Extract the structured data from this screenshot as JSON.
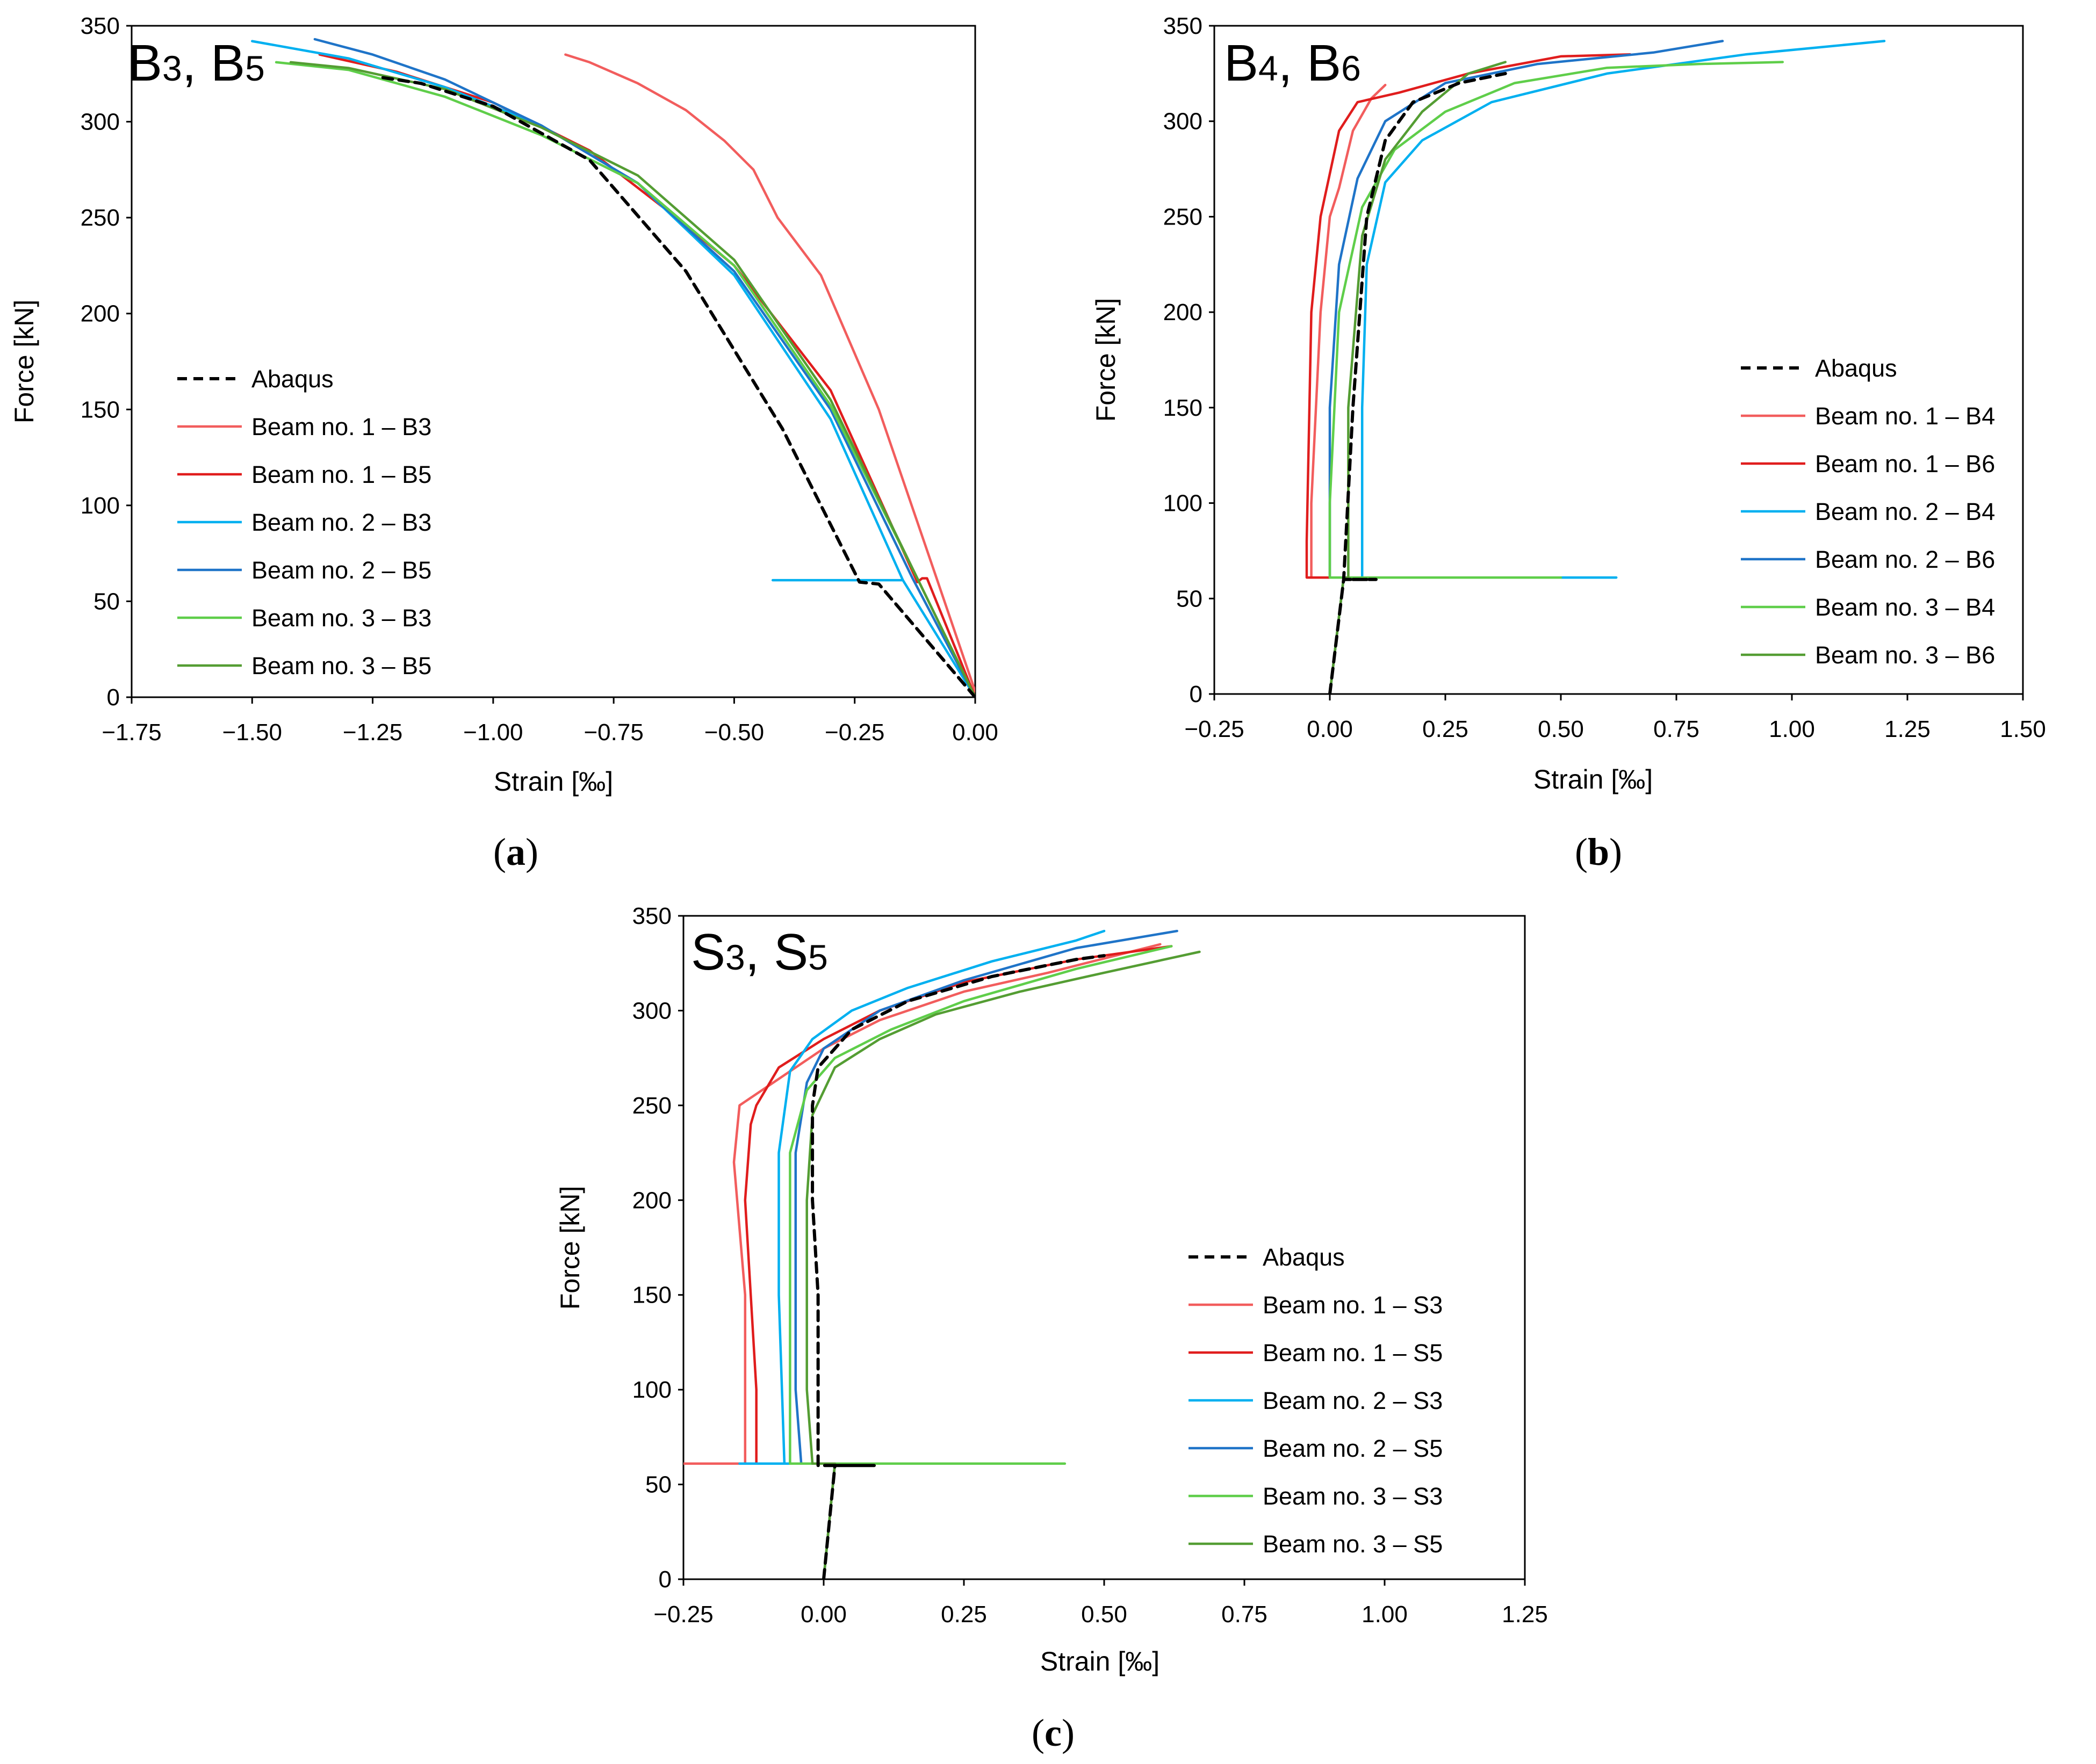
{
  "colors": {
    "Abaqus": "#000000",
    "Beam no. 1 (light)": "#f25d5d",
    "Beam no. 1 (dark)": "#e01d1d",
    "Beam no. 2 (light)": "#00b0f0",
    "Beam no. 2 (dark)": "#1f74c8",
    "Beam no. 3 (light)": "#5fce4a",
    "Beam no. 3 (dark)": "#549d33"
  },
  "chart_data": [
    {
      "id": "a",
      "type": "line",
      "caption_letter": "a",
      "title_main1": "B",
      "title_sub1": "3",
      "title_sep": ", ",
      "title_main2": "B",
      "title_sub2": "5",
      "xlabel": "Strain [‰]",
      "ylabel": "Force [kN]",
      "xlim": [
        -1.75,
        0.0
      ],
      "ylim": [
        0,
        350
      ],
      "xticks": [
        -1.75,
        -1.5,
        -1.25,
        -1.0,
        -0.75,
        -0.5,
        -0.25,
        0.0
      ],
      "xtick_labels": [
        "−1.75",
        "−1.50",
        "−1.25",
        "−1.00",
        "−0.75",
        "−0.50",
        "−0.25",
        "0.00"
      ],
      "yticks": [
        0,
        50,
        100,
        150,
        200,
        250,
        300,
        350
      ],
      "ytick_labels": [
        "0",
        "50",
        "100",
        "150",
        "200",
        "250",
        "300",
        "350"
      ],
      "legend_position": "center-left",
      "series": [
        {
          "name": "Abaqus",
          "dash": true,
          "x": [
            0.0,
            -0.2,
            -0.24,
            -0.4,
            -0.6,
            -0.8,
            -1.0,
            -1.15,
            -1.23
          ],
          "y": [
            0,
            59,
            60,
            140,
            222,
            280,
            308,
            320,
            323
          ]
        },
        {
          "name": "Beam no. 1 – B3",
          "dash": false,
          "x": [
            0.0,
            -0.08,
            -0.2,
            -0.32,
            -0.41,
            -0.46,
            -0.52,
            -0.6,
            -0.7,
            -0.8,
            -0.85
          ],
          "y": [
            3,
            62,
            150,
            220,
            250,
            275,
            290,
            306,
            320,
            331,
            335
          ]
        },
        {
          "name": "Beam no. 1 – B5",
          "dash": false,
          "x": [
            0.0,
            -0.1,
            -0.11,
            -0.12,
            -0.3,
            -0.5,
            -0.62,
            -0.8,
            -1.0,
            -1.2,
            -1.36
          ],
          "y": [
            0,
            62,
            62,
            60,
            160,
            225,
            250,
            285,
            310,
            326,
            335
          ]
        },
        {
          "name": "Beam no. 2 – B3",
          "dash": false,
          "x": [
            0.0,
            -0.15,
            -0.42,
            -0.15,
            -0.3,
            -0.5,
            -0.7,
            -0.9,
            -1.1,
            -1.3,
            -1.5
          ],
          "y": [
            0,
            61,
            61,
            61,
            145,
            220,
            268,
            298,
            318,
            333,
            342
          ]
        },
        {
          "name": "Beam no. 2 – B5",
          "dash": false,
          "x": [
            0.0,
            -0.13,
            -0.3,
            -0.5,
            -0.7,
            -0.9,
            -1.1,
            -1.25,
            -1.37
          ],
          "y": [
            0,
            62,
            150,
            222,
            268,
            298,
            322,
            335,
            343
          ]
        },
        {
          "name": "Beam no. 3 – B3",
          "dash": false,
          "x": [
            0.0,
            -0.12,
            -0.3,
            -0.5,
            -0.7,
            -0.9,
            -1.1,
            -1.3,
            -1.45
          ],
          "y": [
            0,
            62,
            152,
            225,
            268,
            293,
            313,
            327,
            331
          ]
        },
        {
          "name": "Beam no. 3 – B5",
          "dash": false,
          "x": [
            0.0,
            -0.12,
            -0.3,
            -0.5,
            -0.7,
            -0.9,
            -1.1,
            -1.3,
            -1.42
          ],
          "y": [
            0,
            62,
            155,
            228,
            272,
            297,
            317,
            328,
            331
          ]
        }
      ]
    },
    {
      "id": "b",
      "type": "line",
      "caption_letter": "b",
      "title_main1": "B",
      "title_sub1": "4",
      "title_sep": ", ",
      "title_main2": "B",
      "title_sub2": "6",
      "xlabel": "Strain [‰]",
      "ylabel": "Force [kN]",
      "xlim": [
        -0.25,
        1.5
      ],
      "ylim": [
        0,
        350
      ],
      "xticks": [
        -0.25,
        0.0,
        0.25,
        0.5,
        0.75,
        1.0,
        1.25,
        1.5
      ],
      "xtick_labels": [
        "−0.25",
        "0.00",
        "0.25",
        "0.50",
        "0.75",
        "1.00",
        "1.25",
        "1.50"
      ],
      "yticks": [
        0,
        50,
        100,
        150,
        200,
        250,
        300,
        350
      ],
      "ytick_labels": [
        "0",
        "50",
        "100",
        "150",
        "200",
        "250",
        "300",
        "350"
      ],
      "legend_position": "center-right",
      "series": [
        {
          "name": "Abaqus",
          "dash": true,
          "x": [
            0.0,
            0.03,
            0.1,
            0.03,
            0.05,
            0.08,
            0.12,
            0.18,
            0.28,
            0.38
          ],
          "y": [
            0,
            60,
            60,
            60,
            150,
            250,
            290,
            310,
            320,
            325
          ]
        },
        {
          "name": "Beam no. 1 – B4",
          "dash": false,
          "x": [
            0.0,
            0.03,
            -0.04,
            -0.04,
            -0.02,
            0.0,
            0.02,
            0.05,
            0.09,
            0.12
          ],
          "y": [
            0,
            61,
            61,
            100,
            200,
            250,
            265,
            295,
            312,
            319
          ]
        },
        {
          "name": "Beam no. 1 – B6",
          "dash": false,
          "x": [
            0.0,
            0.03,
            -0.05,
            -0.05,
            -0.04,
            -0.02,
            0.02,
            0.06,
            0.15,
            0.3,
            0.5,
            0.65
          ],
          "y": [
            0,
            61,
            61,
            80,
            200,
            250,
            295,
            310,
            315,
            325,
            334,
            335
          ]
        },
        {
          "name": "Beam no. 2 – B4",
          "dash": false,
          "x": [
            0.0,
            0.03,
            0.62,
            0.07,
            0.07,
            0.08,
            0.12,
            0.2,
            0.35,
            0.6,
            0.9,
            1.2
          ],
          "y": [
            0,
            61,
            61,
            61,
            150,
            225,
            268,
            290,
            310,
            325,
            335,
            342
          ]
        },
        {
          "name": "Beam no. 2 – B6",
          "dash": false,
          "x": [
            0.0,
            0.03,
            0.0,
            0.0,
            0.02,
            0.06,
            0.12,
            0.25,
            0.45,
            0.7,
            0.85
          ],
          "y": [
            0,
            61,
            61,
            150,
            225,
            270,
            300,
            320,
            330,
            336,
            342
          ]
        },
        {
          "name": "Beam no. 3 – B4",
          "dash": false,
          "x": [
            0.0,
            0.03,
            0.5,
            0.0,
            0.0,
            0.02,
            0.07,
            0.14,
            0.25,
            0.4,
            0.6,
            0.8,
            0.98
          ],
          "y": [
            0,
            61,
            61,
            61,
            100,
            200,
            255,
            285,
            305,
            320,
            328,
            330,
            331
          ]
        },
        {
          "name": "Beam no. 3 – B6",
          "dash": false,
          "x": [
            0.0,
            0.03,
            0.04,
            0.04,
            0.07,
            0.12,
            0.2,
            0.3,
            0.38
          ],
          "y": [
            0,
            61,
            61,
            150,
            240,
            280,
            305,
            325,
            331
          ]
        }
      ]
    },
    {
      "id": "c",
      "type": "line",
      "caption_letter": "c",
      "title_main1": "S",
      "title_sub1": "3",
      "title_sep": ", ",
      "title_main2": "S",
      "title_sub2": "5",
      "xlabel": "Strain [‰]",
      "ylabel": "Force [kN]",
      "xlim": [
        -0.25,
        1.25
      ],
      "ylim": [
        0,
        350
      ],
      "xticks": [
        -0.25,
        0.0,
        0.25,
        0.5,
        0.75,
        1.0,
        1.25
      ],
      "xtick_labels": [
        "−0.25",
        "0.00",
        "0.25",
        "0.50",
        "0.75",
        "1.00",
        "1.25"
      ],
      "yticks": [
        0,
        50,
        100,
        150,
        200,
        250,
        300,
        350
      ],
      "ytick_labels": [
        "0",
        "50",
        "100",
        "150",
        "200",
        "250",
        "300",
        "350"
      ],
      "legend_position": "center-right",
      "series": [
        {
          "name": "Abaqus",
          "dash": true,
          "x": [
            0.0,
            0.02,
            0.09,
            -0.01,
            -0.01,
            -0.02,
            -0.02,
            -0.01,
            0.05,
            0.15,
            0.3,
            0.45,
            0.5
          ],
          "y": [
            0,
            60,
            60,
            60,
            150,
            200,
            250,
            270,
            290,
            305,
            318,
            327,
            329
          ]
        },
        {
          "name": "Beam no. 1 – S3",
          "dash": false,
          "x": [
            0.0,
            0.02,
            -0.25,
            -0.14,
            -0.14,
            -0.16,
            -0.15,
            -0.14,
            -0.1,
            0.0,
            0.1,
            0.25,
            0.4,
            0.6
          ],
          "y": [
            0,
            61,
            61,
            61,
            150,
            220,
            250,
            252,
            260,
            280,
            295,
            310,
            320,
            335
          ]
        },
        {
          "name": "Beam no. 1 – S5",
          "dash": false,
          "x": [
            0.0,
            0.02,
            -0.12,
            -0.12,
            -0.14,
            -0.13,
            -0.12,
            -0.08,
            0.0,
            0.1,
            0.25,
            0.45,
            0.62
          ],
          "y": [
            0,
            61,
            61,
            100,
            200,
            240,
            250,
            270,
            285,
            300,
            315,
            327,
            334
          ]
        },
        {
          "name": "Beam no. 2 – S3",
          "dash": false,
          "x": [
            0.0,
            0.02,
            -0.15,
            -0.07,
            -0.08,
            -0.08,
            -0.06,
            -0.02,
            0.05,
            0.15,
            0.3,
            0.45,
            0.5
          ],
          "y": [
            0,
            61,
            61,
            61,
            150,
            225,
            268,
            285,
            300,
            312,
            326,
            337,
            342
          ]
        },
        {
          "name": "Beam no. 2 – S5",
          "dash": false,
          "x": [
            0.0,
            0.02,
            -0.04,
            -0.05,
            -0.05,
            -0.03,
            0.0,
            0.1,
            0.25,
            0.45,
            0.63
          ],
          "y": [
            0,
            61,
            61,
            100,
            225,
            262,
            280,
            300,
            316,
            333,
            342
          ]
        },
        {
          "name": "Beam no. 3 – S3",
          "dash": false,
          "x": [
            0.0,
            0.02,
            0.43,
            -0.06,
            -0.06,
            -0.06,
            -0.03,
            0.02,
            0.12,
            0.25,
            0.45,
            0.62
          ],
          "y": [
            0,
            61,
            61,
            61,
            150,
            225,
            258,
            275,
            290,
            305,
            322,
            334
          ]
        },
        {
          "name": "Beam no. 3 – S5",
          "dash": false,
          "x": [
            0.0,
            0.02,
            -0.02,
            -0.03,
            -0.03,
            -0.02,
            0.02,
            0.1,
            0.2,
            0.35,
            0.5,
            0.67
          ],
          "y": [
            0,
            61,
            61,
            100,
            200,
            245,
            270,
            285,
            298,
            310,
            320,
            331
          ]
        }
      ]
    }
  ]
}
